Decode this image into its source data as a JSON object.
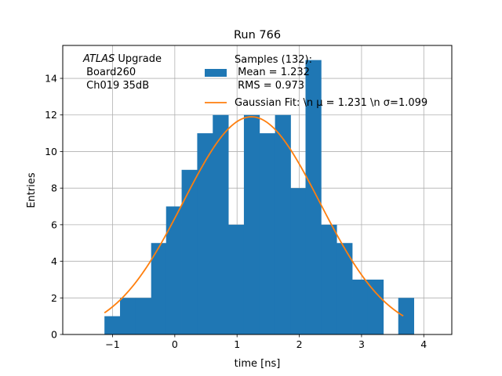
{
  "chart_data": {
    "type": "bar",
    "title": "Run 766",
    "xlabel": "time [ns]",
    "ylabel": "Entries",
    "xlim": [
      -1.8,
      4.45
    ],
    "ylim": [
      0,
      15.8
    ],
    "xticks": [
      -1,
      0,
      1,
      2,
      3,
      4
    ],
    "yticks": [
      0,
      2,
      4,
      6,
      8,
      10,
      12,
      14
    ],
    "grid": true,
    "bar_color": "#1f77b4",
    "fit_color": "#ff7f0e",
    "bin_edges": [
      -1.13,
      -0.88,
      -0.63,
      -0.38,
      -0.14,
      0.11,
      0.36,
      0.61,
      0.86,
      1.11,
      1.36,
      1.61,
      1.86,
      2.1,
      2.35,
      2.6,
      2.85,
      3.1,
      3.35,
      3.59
    ],
    "histogram": [
      {
        "x_start": -1.13,
        "x_end": -0.88,
        "count": 1
      },
      {
        "x_start": -0.88,
        "x_end": -0.63,
        "count": 2
      },
      {
        "x_start": -0.63,
        "x_end": -0.38,
        "count": 2
      },
      {
        "x_start": -0.38,
        "x_end": -0.14,
        "count": 5
      },
      {
        "x_start": -0.14,
        "x_end": 0.11,
        "count": 7
      },
      {
        "x_start": 0.11,
        "x_end": 0.36,
        "count": 9
      },
      {
        "x_start": 0.36,
        "x_end": 0.61,
        "count": 11
      },
      {
        "x_start": 0.61,
        "x_end": 0.86,
        "count": 12
      },
      {
        "x_start": 0.86,
        "x_end": 1.11,
        "count": 6
      },
      {
        "x_start": 1.11,
        "x_end": 1.36,
        "count": 12
      },
      {
        "x_start": 1.36,
        "x_end": 1.61,
        "count": 11
      },
      {
        "x_start": 1.61,
        "x_end": 1.86,
        "count": 12
      },
      {
        "x_start": 1.86,
        "x_end": 2.1,
        "count": 8
      },
      {
        "x_start": 2.1,
        "x_end": 2.35,
        "count": 15
      },
      {
        "x_start": 2.35,
        "x_end": 2.6,
        "count": 6
      },
      {
        "x_start": 2.6,
        "x_end": 2.85,
        "count": 5
      },
      {
        "x_start": 2.85,
        "x_end": 3.1,
        "count": 3
      },
      {
        "x_start": 3.1,
        "x_end": 3.35,
        "count": 3
      },
      {
        "x_start": 3.35,
        "x_end": 3.59,
        "count": 0
      },
      {
        "x_start": 3.59,
        "x_end": 3.84,
        "count": 2
      }
    ],
    "fit": {
      "label": "Gaussian Fit: \\n $\\mu$ = 1.231 \\n $\\sigma$=1.099",
      "mu": 1.231,
      "sigma": 1.099,
      "amplitude": 11.9,
      "x_range": [
        -1.13,
        3.67
      ]
    },
    "legend": {
      "position": "top-right",
      "entries": [
        {
          "kind": "bar",
          "lines": [
            "Samples (132):",
            " Mean = 1.232",
            " RMS = 0.973"
          ]
        },
        {
          "kind": "line",
          "text": "Gaussian Fit: \\n μ = 1.231 \\n σ=1.099"
        }
      ]
    },
    "annotation": {
      "italic": "ATLAS",
      "rest": " Upgrade",
      "line2": " Board260",
      "line3": " Ch019 35dB"
    }
  }
}
